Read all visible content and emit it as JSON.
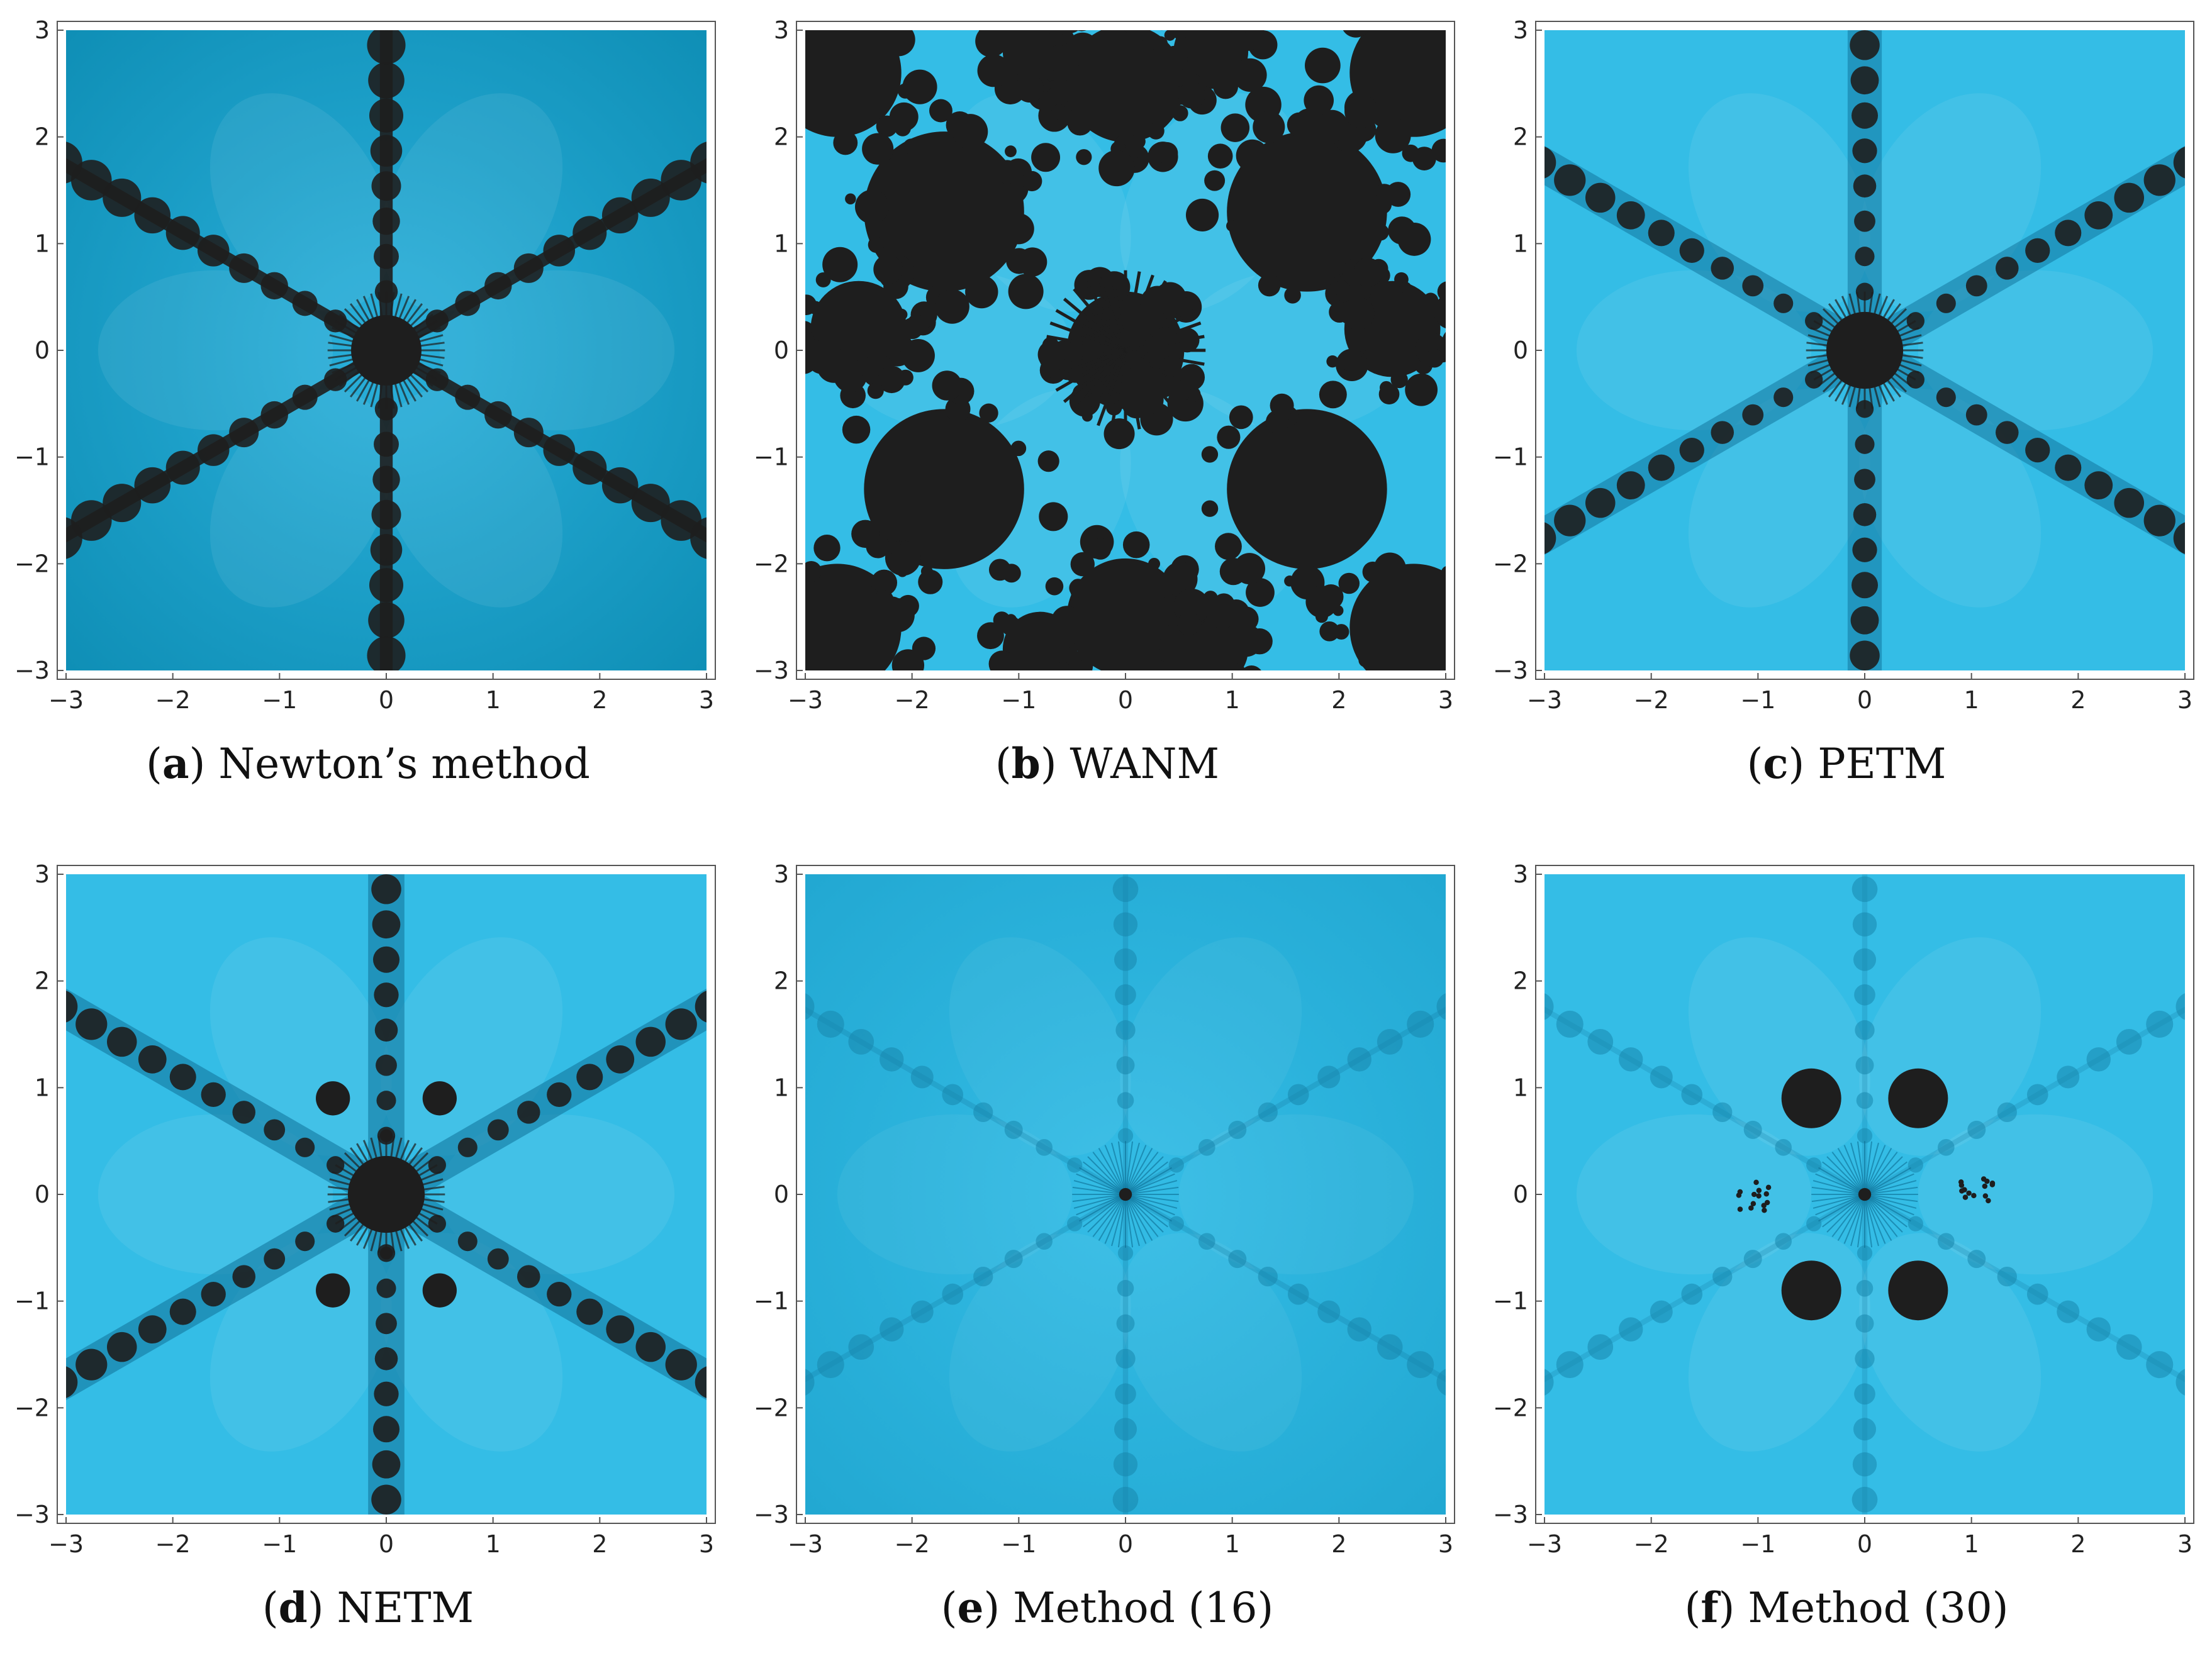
{
  "figure": {
    "panels": [
      {
        "id": "a",
        "letter": "a",
        "title": "Newton’s method",
        "style": "newton"
      },
      {
        "id": "b",
        "letter": "b",
        "title": "WANM",
        "style": "wanm"
      },
      {
        "id": "c",
        "letter": "c",
        "title": "PETM",
        "style": "petm"
      },
      {
        "id": "d",
        "letter": "d",
        "title": "NETM",
        "style": "netm"
      },
      {
        "id": "e",
        "letter": "e",
        "title": "Method (16)",
        "style": "m16"
      },
      {
        "id": "f",
        "letter": "f",
        "title": "Method (30)",
        "style": "m30"
      }
    ],
    "colors": {
      "basin_dark": "#0f8fb6",
      "basin_mid": "#22a8d2",
      "basin_light": "#34bde6",
      "divergent": "#1e1e1e"
    }
  },
  "chart_data": [
    {
      "type": "heatmap",
      "title": "Newton’s method",
      "xlim": [
        -3,
        3
      ],
      "ylim": [
        -3,
        3
      ],
      "xticks": [
        "−3",
        "−2",
        "−1",
        "0",
        "1",
        "2",
        "3"
      ],
      "yticks": [
        "3",
        "2",
        "1",
        "0",
        "−1",
        "−2",
        "−3"
      ],
      "grid": false
    },
    {
      "type": "heatmap",
      "title": "WANM",
      "xlim": [
        -3,
        3
      ],
      "ylim": [
        -3,
        3
      ],
      "xticks": [
        "−3",
        "−2",
        "−1",
        "0",
        "1",
        "2",
        "3"
      ],
      "yticks": [
        "3",
        "2",
        "1",
        "0",
        "−1",
        "−2",
        "−3"
      ],
      "grid": false
    },
    {
      "type": "heatmap",
      "title": "PETM",
      "xlim": [
        -3,
        3
      ],
      "ylim": [
        -3,
        3
      ],
      "xticks": [
        "−3",
        "−2",
        "−1",
        "0",
        "1",
        "2",
        "3"
      ],
      "yticks": [
        "3",
        "2",
        "1",
        "0",
        "−1",
        "−2",
        "−3"
      ],
      "grid": false
    },
    {
      "type": "heatmap",
      "title": "NETM",
      "xlim": [
        -3,
        3
      ],
      "ylim": [
        -3,
        3
      ],
      "xticks": [
        "−3",
        "−2",
        "−1",
        "0",
        "1",
        "2",
        "3"
      ],
      "yticks": [
        "3",
        "2",
        "1",
        "0",
        "−1",
        "−2",
        "−3"
      ],
      "grid": false
    },
    {
      "type": "heatmap",
      "title": "Method (16)",
      "xlim": [
        -3,
        3
      ],
      "ylim": [
        -3,
        3
      ],
      "xticks": [
        "−3",
        "−2",
        "−1",
        "0",
        "1",
        "2",
        "3"
      ],
      "yticks": [
        "3",
        "2",
        "1",
        "0",
        "−1",
        "−2",
        "−3"
      ],
      "grid": false
    },
    {
      "type": "heatmap",
      "title": "Method (30)",
      "xlim": [
        -3,
        3
      ],
      "ylim": [
        -3,
        3
      ],
      "xticks": [
        "−3",
        "−2",
        "−1",
        "0",
        "1",
        "2",
        "3"
      ],
      "yticks": [
        "3",
        "2",
        "1",
        "0",
        "−1",
        "−2",
        "−3"
      ],
      "grid": false
    }
  ]
}
